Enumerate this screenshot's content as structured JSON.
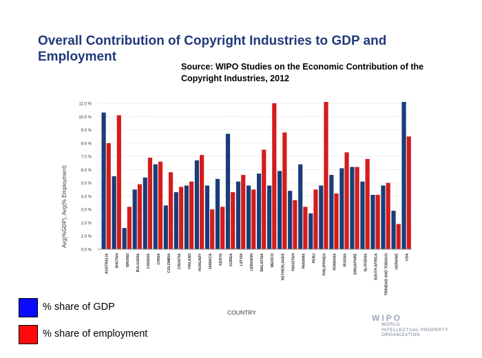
{
  "slide": {
    "title": "Overall Contribution of Copyright Industries to GDP and Employment",
    "source": "Source:  WIPO Studies on the Economic Contribution of the Copyright Industries, 2012"
  },
  "legend": {
    "gdp": {
      "label": "% share of GDP",
      "color": "#0a0aff"
    },
    "employment": {
      "label": "% share of employment",
      "color": "#ff0a0a"
    }
  },
  "branding": {
    "mark": "WIPO",
    "lines": [
      "WORLD",
      "INTELLECTUAL PROPERTY",
      "ORGANIZATION"
    ]
  },
  "colors": {
    "title": "#1f3a7a",
    "gdp_bar": "#1a3d78",
    "employment_bar": "#d41c1c",
    "axis_text": "#333333"
  },
  "chart_data": {
    "type": "bar",
    "title": "",
    "xlabel": "COUNTRY",
    "ylabel": "Avg(%GDP), Avg(% Employment)",
    "ylim": [
      0,
      11
    ],
    "yticks": [
      0,
      1,
      2,
      3,
      4,
      5,
      6,
      7,
      8,
      9,
      10,
      11
    ],
    "ytick_labels": [
      "0.0 %",
      "1.0 %",
      "2.0 %",
      "3.0 %",
      "4.0 %",
      "5.0 %",
      "6.0 %",
      "7.0 %",
      "8.0 %",
      "9.0 %",
      "10.0 %",
      "11.0 %"
    ],
    "categories": [
      "AUSTRALIA",
      "BHUTAN",
      "BRUNEI",
      "BULGARIA",
      "CANADA",
      "CHINA",
      "COLOMBIA",
      "CROATIA",
      "FINLAND",
      "HUNGARY",
      "JAMAICA",
      "KENYA",
      "KOREA",
      "LATVIA",
      "LEBANON",
      "MALAYSIA",
      "MEXICO",
      "NETHERLANDS",
      "PAKISTAN",
      "PANAMA",
      "PERU",
      "PHILIPPINES",
      "ROMANIA",
      "RUSSIA",
      "SINGAPORE",
      "SLOVENIA",
      "SOUTH AFRICA",
      "TRINIDAD AND TOBAGO",
      "UKRAINE",
      "USA"
    ],
    "series": [
      {
        "name": "% share of GDP",
        "values": [
          10.3,
          5.5,
          1.6,
          4.5,
          5.4,
          6.4,
          3.3,
          4.3,
          4.8,
          6.7,
          4.8,
          5.3,
          8.7,
          5.1,
          4.8,
          5.7,
          4.8,
          5.9,
          4.4,
          6.4,
          2.7,
          4.8,
          5.6,
          6.1,
          6.2,
          5.1,
          4.1,
          4.8,
          2.9,
          11.1
        ]
      },
      {
        "name": "% share of employment",
        "values": [
          8.0,
          10.1,
          3.2,
          4.9,
          6.9,
          6.6,
          5.8,
          4.7,
          5.1,
          7.1,
          3.0,
          3.2,
          4.3,
          5.6,
          4.5,
          7.5,
          11.0,
          8.8,
          3.7,
          3.2,
          4.5,
          11.1,
          4.2,
          7.3,
          6.2,
          6.8,
          4.1,
          5.0,
          1.9,
          8.5
        ]
      }
    ],
    "legend": "bottom-left"
  }
}
